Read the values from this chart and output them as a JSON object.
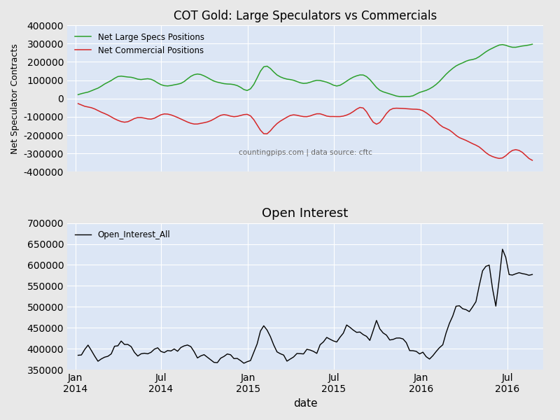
{
  "title1": "COT Gold: Large Speculators vs Commercials",
  "title2": "Open Interest",
  "ylabel1": "Net Speculator Contracts",
  "xlabel": "date",
  "legend1": [
    "Net Large Specs Positions",
    "Net Commercial Positions"
  ],
  "legend2": [
    "Open_Interest_All"
  ],
  "color_specs": "#2ca02c",
  "color_comm": "#d62728",
  "color_oi": "#000000",
  "bg_color": "#dce6f5",
  "watermark": "countingpips.com | data source: cftc",
  "ylim1": [
    -400000,
    400000
  ],
  "ylim2": [
    350000,
    700000
  ],
  "yticks1": [
    -400000,
    -300000,
    -200000,
    -100000,
    0,
    100000,
    200000,
    300000,
    400000
  ],
  "yticks2": [
    350000,
    400000,
    450000,
    500000,
    550000,
    600000,
    650000,
    700000
  ]
}
